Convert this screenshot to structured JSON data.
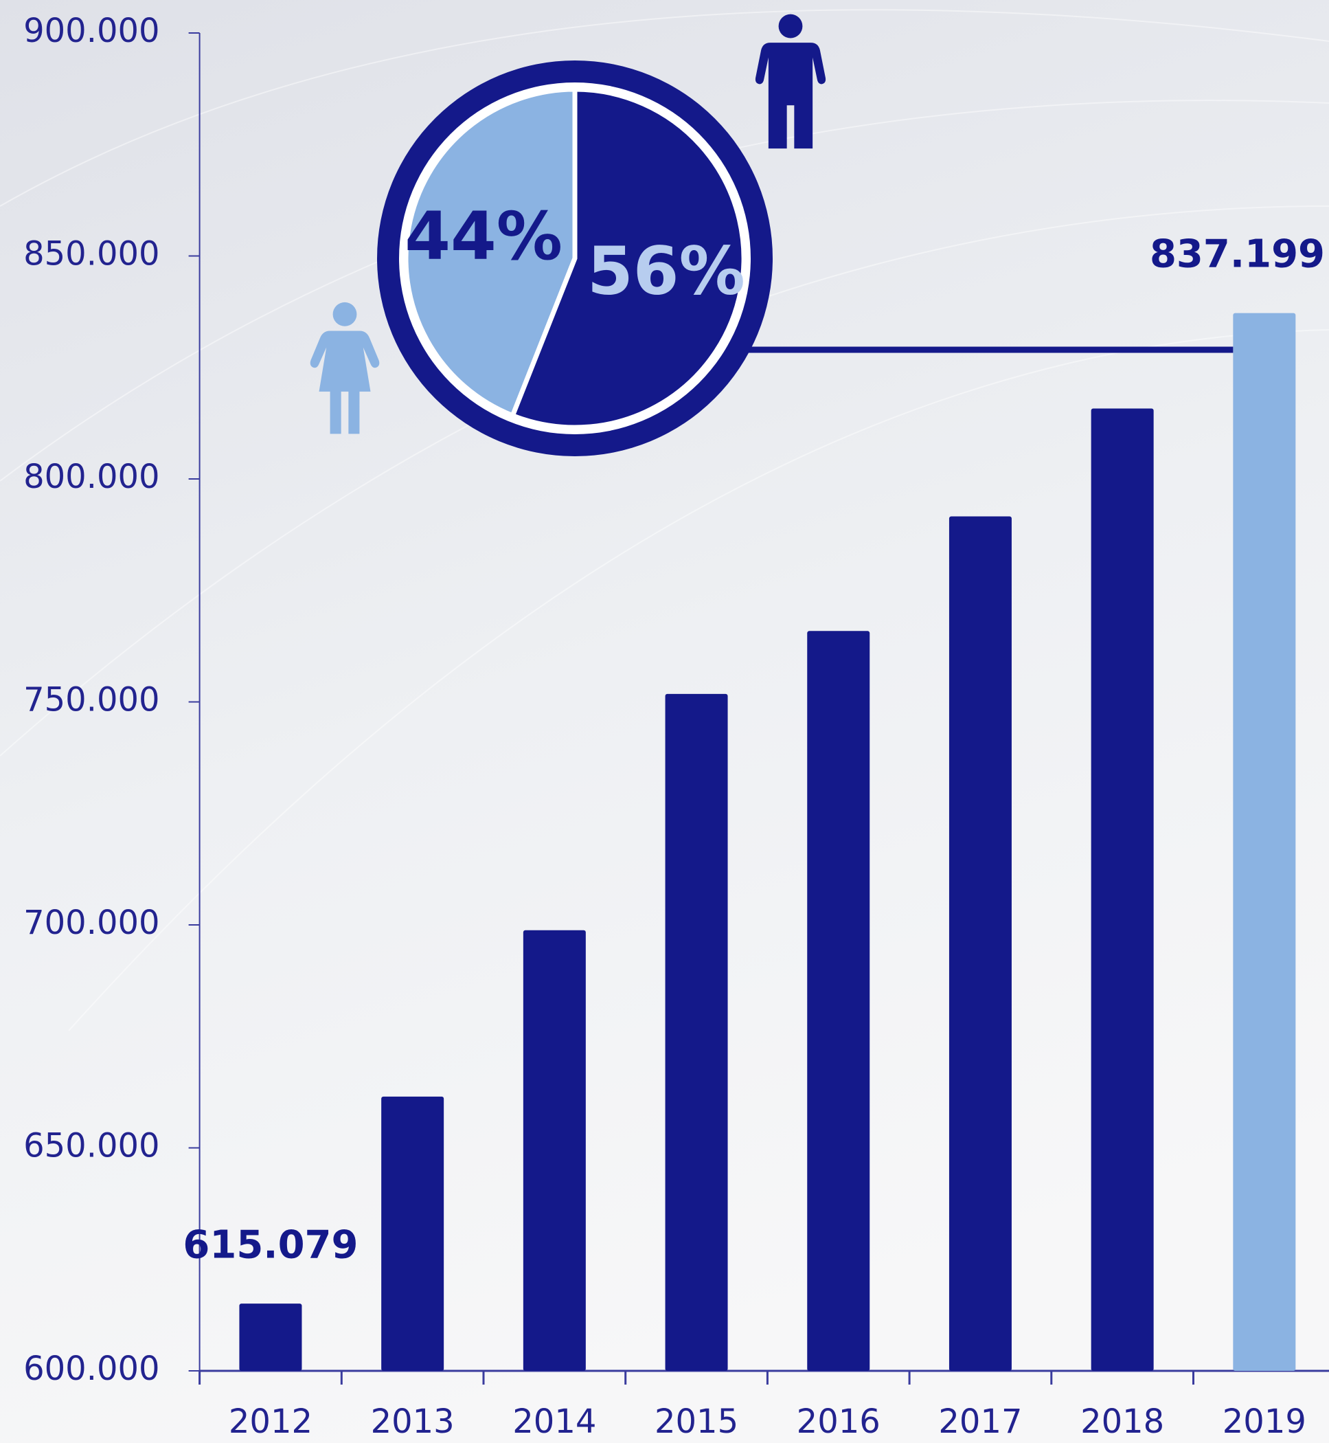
{
  "chart_data": [
    {
      "type": "bar",
      "categories": [
        "2012",
        "2013",
        "2014",
        "2015",
        "2016",
        "2017",
        "2018",
        "2019"
      ],
      "values": [
        615079,
        661500,
        698800,
        751800,
        765900,
        791600,
        815800,
        837199
      ],
      "value_labels": [
        "615.079",
        null,
        null,
        null,
        null,
        null,
        null,
        "837.199"
      ],
      "colors": [
        "#14198a",
        "#14198a",
        "#14198a",
        "#14198a",
        "#14198a",
        "#14198a",
        "#14198a",
        "#8bb3e2"
      ],
      "ylim": [
        600000,
        900000
      ],
      "yticks": [
        {
          "value": 600000,
          "label": "600.000"
        },
        {
          "value": 650000,
          "label": "650.000"
        },
        {
          "value": 700000,
          "label": "700.000"
        },
        {
          "value": 750000,
          "label": "750.000"
        },
        {
          "value": 800000,
          "label": "800.000"
        },
        {
          "value": 850000,
          "label": "850.000"
        },
        {
          "value": 900000,
          "label": "900.000"
        }
      ],
      "grid": false
    },
    {
      "type": "pie",
      "values": [
        44,
        56
      ],
      "value_labels": [
        "44%",
        "56%"
      ],
      "colors": [
        "#8bb3e2",
        "#14198a"
      ],
      "label_colors": [
        "#14198a",
        "#b7cdef"
      ]
    }
  ]
}
